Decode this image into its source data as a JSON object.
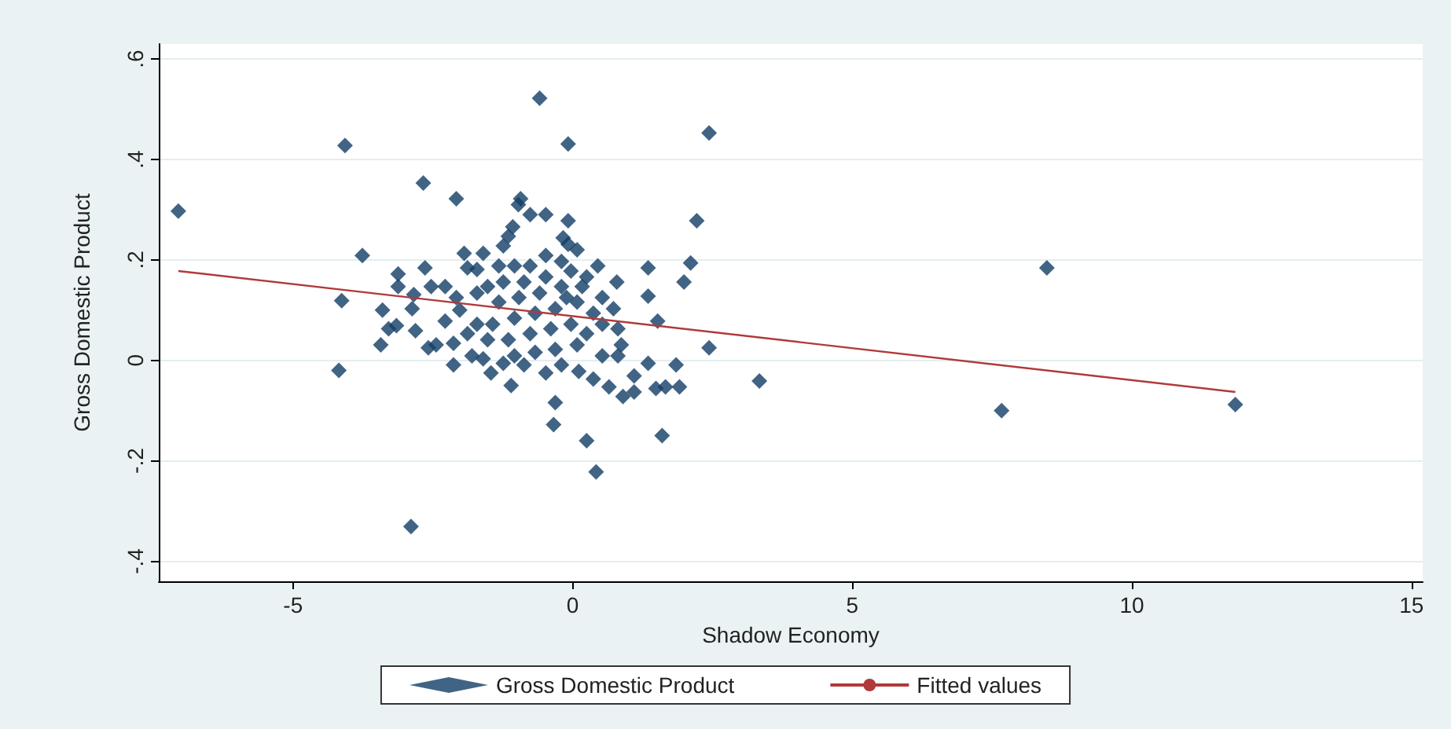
{
  "chart_data": {
    "type": "scatter",
    "xlabel": "Shadow Economy",
    "ylabel": "Gross Domestic Product",
    "xlim": [
      -7.4,
      15.2
    ],
    "ylim": [
      -0.44,
      0.63
    ],
    "xticks": [
      -5,
      0,
      5,
      10,
      15
    ],
    "yticks": [
      {
        "value": -0.4,
        "label": "-.4"
      },
      {
        "value": -0.2,
        "label": "-.2"
      },
      {
        "value": 0,
        "label": "0"
      },
      {
        "value": 0.2,
        "label": ".2"
      },
      {
        "value": 0.4,
        "label": ".4"
      },
      {
        "value": 0.6,
        "label": ".6"
      }
    ],
    "grid": "y",
    "legend": "bottom",
    "marker": "diamond",
    "series": [
      {
        "name": "Gross Domestic Product",
        "color": "#123d66",
        "x": [
          -7.05,
          -4.07,
          -4.13,
          -4.18,
          -3.76,
          -2.67,
          -2.08,
          -0.59,
          -0.08,
          2.44,
          -2.89,
          -0.93,
          -0.97,
          -0.76,
          -0.48,
          -0.08,
          -1.07,
          -1.15,
          -1.24,
          -0.17,
          -0.08,
          0.08,
          -2.64,
          -3.12,
          -3.12,
          -2.53,
          -2.28,
          -1.94,
          -1.6,
          -1.88,
          -1.71,
          -3.4,
          -2.84,
          -2.87,
          -3.15,
          -3.29,
          -2.81,
          -3.43,
          -2.58,
          -2.44,
          -2.13,
          -2.13,
          -2.28,
          -2.02,
          -2.08,
          -1.6,
          -1.46,
          -1.1,
          -1.24,
          -0.87,
          -0.48,
          -0.31,
          -0.34,
          0.25,
          0.42,
          0.11,
          0.37,
          0.65,
          0.9,
          1.1,
          1.1,
          1.35,
          1.49,
          1.66,
          1.85,
          1.91,
          1.6,
          3.34,
          2.44,
          1.52,
          1.35,
          1.35,
          0.79,
          1.99,
          2.11,
          2.22,
          0.81,
          0.87,
          0.81,
          0.45,
          0.53,
          0.37,
          0.17,
          -0.03,
          -0.2,
          -0.48,
          -0.76,
          -1.04,
          -1.24,
          -1.52,
          -1.71,
          -1.32,
          -0.96,
          -0.59,
          -0.2,
          0.08,
          -0.31,
          -0.67,
          -1.04,
          -1.43,
          -1.71,
          -1.88,
          -1.52,
          -1.15,
          -0.76,
          -0.39,
          -0.03,
          0.25,
          0.08,
          -0.31,
          -0.67,
          -1.04,
          -0.2,
          0.53,
          0.53,
          0.73,
          -0.48,
          -0.87,
          0.25,
          -0.11,
          -1.32,
          -1.8,
          7.67,
          8.48,
          11.85
        ],
        "values": [
          0.297,
          0.428,
          0.119,
          -0.02,
          0.209,
          0.353,
          0.322,
          0.522,
          0.431,
          0.453,
          -0.331,
          0.322,
          0.31,
          0.29,
          0.29,
          0.278,
          0.266,
          0.247,
          0.228,
          0.244,
          0.231,
          0.22,
          0.184,
          0.172,
          0.147,
          0.147,
          0.147,
          0.213,
          0.213,
          0.184,
          0.181,
          0.1,
          0.131,
          0.103,
          0.069,
          0.063,
          0.059,
          0.031,
          0.025,
          0.031,
          0.034,
          -0.009,
          0.078,
          0.1,
          0.125,
          0.003,
          -0.025,
          -0.05,
          -0.006,
          -0.009,
          -0.025,
          -0.084,
          -0.128,
          -0.16,
          -0.222,
          -0.022,
          -0.037,
          -0.053,
          -0.072,
          -0.063,
          -0.031,
          -0.006,
          -0.056,
          -0.053,
          -0.009,
          -0.053,
          -0.15,
          -0.041,
          0.025,
          0.078,
          0.128,
          0.184,
          0.156,
          0.156,
          0.194,
          0.278,
          0.063,
          0.031,
          0.009,
          0.188,
          0.125,
          0.094,
          0.147,
          0.178,
          0.197,
          0.209,
          0.188,
          0.188,
          0.156,
          0.147,
          0.134,
          0.116,
          0.125,
          0.134,
          0.147,
          0.116,
          0.103,
          0.094,
          0.084,
          0.072,
          0.072,
          0.053,
          0.041,
          0.041,
          0.053,
          0.063,
          0.072,
          0.053,
          0.031,
          0.022,
          0.016,
          0.009,
          -0.009,
          0.009,
          0.072,
          0.103,
          0.166,
          0.156,
          0.166,
          0.125,
          0.188,
          0.009,
          -0.1,
          0.184,
          -0.088
        ]
      },
      {
        "name": "Fitted values",
        "type": "line",
        "marker": "none",
        "color": "#b03a3a",
        "x": [
          -7.05,
          11.85
        ],
        "values": [
          0.178,
          -0.063
        ]
      }
    ]
  }
}
